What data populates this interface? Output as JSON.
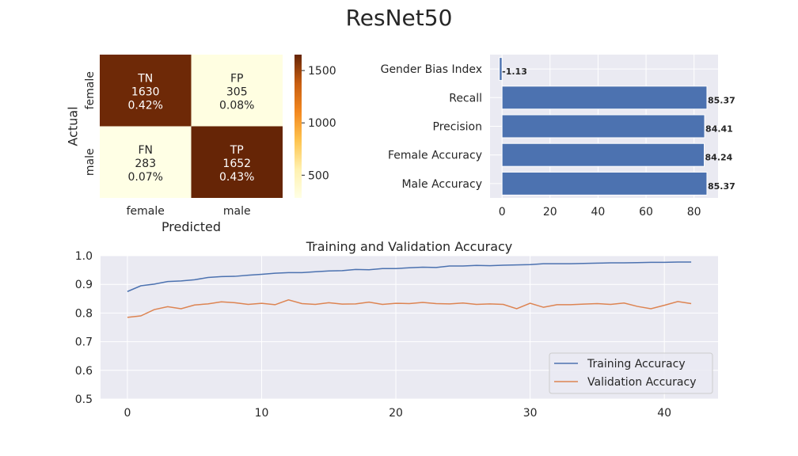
{
  "title": "ResNet50",
  "chart_data": [
    {
      "type": "heatmap",
      "xlabel": "Predicted",
      "ylabel": "Actual",
      "x_categories": [
        "female",
        "male"
      ],
      "y_categories": [
        "female",
        "male"
      ],
      "cells": [
        [
          {
            "label": "TN",
            "value": 1630,
            "pct": "0.42%"
          },
          {
            "label": "FP",
            "value": 305,
            "pct": "0.08%"
          }
        ],
        [
          {
            "label": "FN",
            "value": 283,
            "pct": "0.07%"
          },
          {
            "label": "TP",
            "value": 1652,
            "pct": "0.43%"
          }
        ]
      ],
      "colorbar": {
        "ticks": [
          500,
          1000,
          1500
        ],
        "range": [
          283,
          1652
        ],
        "colormap": "YlOrBr"
      }
    },
    {
      "type": "bar",
      "orientation": "horizontal",
      "categories": [
        "Gender Bias Index",
        "Recall",
        "Precision",
        "Female Accuracy",
        "Male Accuracy"
      ],
      "values": [
        -1.13,
        85.37,
        84.41,
        84.24,
        85.37
      ],
      "value_labels": [
        "-1.13",
        "85.37",
        "84.41",
        "84.24",
        "85.37"
      ],
      "xlim": [
        -5,
        90
      ],
      "xticks": [
        0,
        20,
        40,
        60,
        80
      ],
      "color": "#4c72b0"
    },
    {
      "type": "line",
      "title": "Training and Validation Accuracy",
      "xlim": [
        -2,
        44
      ],
      "ylim": [
        0.5,
        1.0
      ],
      "xticks": [
        0,
        10,
        20,
        30,
        40
      ],
      "yticks": [
        0.5,
        0.6,
        0.7,
        0.8,
        0.9,
        1.0
      ],
      "ytick_labels": [
        "0.5",
        "0.6",
        "0.7",
        "0.8",
        "0.9",
        "1.0"
      ],
      "legend_position": "lower right",
      "series": [
        {
          "name": "Training Accuracy",
          "color": "#4c72b0",
          "values": [
            0.875,
            0.895,
            0.901,
            0.91,
            0.912,
            0.916,
            0.924,
            0.927,
            0.928,
            0.932,
            0.935,
            0.939,
            0.941,
            0.941,
            0.944,
            0.947,
            0.948,
            0.952,
            0.951,
            0.955,
            0.955,
            0.958,
            0.96,
            0.959,
            0.964,
            0.964,
            0.966,
            0.965,
            0.967,
            0.968,
            0.969,
            0.972,
            0.972,
            0.972,
            0.973,
            0.974,
            0.975,
            0.975,
            0.976,
            0.977,
            0.977,
            0.978,
            0.978
          ]
        },
        {
          "name": "Validation Accuracy",
          "color": "#dd8452",
          "values": [
            0.785,
            0.79,
            0.812,
            0.822,
            0.815,
            0.828,
            0.832,
            0.839,
            0.836,
            0.83,
            0.834,
            0.829,
            0.846,
            0.833,
            0.83,
            0.836,
            0.831,
            0.832,
            0.838,
            0.83,
            0.834,
            0.833,
            0.837,
            0.833,
            0.832,
            0.835,
            0.83,
            0.832,
            0.83,
            0.815,
            0.834,
            0.82,
            0.829,
            0.829,
            0.831,
            0.833,
            0.83,
            0.835,
            0.823,
            0.815,
            0.827,
            0.84,
            0.833
          ]
        }
      ]
    }
  ]
}
